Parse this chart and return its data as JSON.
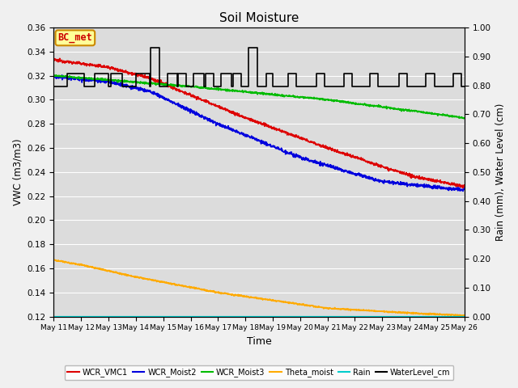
{
  "title": "Soil Moisture",
  "xlabel": "Time",
  "ylabel_left": "VWC (m3/m3)",
  "ylabel_right": "Rain (mm), Water Level (cm)",
  "ylim_left": [
    0.12,
    0.36
  ],
  "ylim_right": [
    0.0,
    1.0
  ],
  "x_tick_labels": [
    "May 11",
    "May 12",
    "May 13",
    "May 14",
    "May 15",
    "May 16",
    "May 17",
    "May 18",
    "May 19",
    "May 20",
    "May 21",
    "May 22",
    "May 23",
    "May 24",
    "May 25",
    "May 26"
  ],
  "colors": {
    "WCR_VMC1": "#dd0000",
    "WCR_Moist2": "#0000dd",
    "WCR_Moist3": "#00bb00",
    "Theta_moist": "#ffaa00",
    "Rain": "#00cccc",
    "WaterLevel_cm": "#000000"
  },
  "background_color": "#dcdcdc",
  "fig_bg": "#f0f0f0",
  "annotation_text": "BC_met",
  "annotation_fg": "#cc0000",
  "annotation_bg": "#ffff99",
  "annotation_edge": "#cc8800",
  "wl_times": [
    0,
    0.3,
    0.5,
    1.0,
    1.1,
    1.3,
    1.5,
    1.6,
    2.0,
    2.1,
    2.3,
    2.5,
    2.6,
    3.0,
    3.1,
    3.5,
    3.55,
    3.75,
    3.85,
    4.0,
    4.15,
    4.5,
    4.55,
    4.75,
    4.85,
    5.0,
    5.1,
    5.5,
    5.55,
    5.75,
    5.85,
    6.0,
    6.1,
    6.5,
    6.55,
    6.75,
    6.85,
    7.0,
    7.1,
    7.4,
    7.45,
    7.65,
    7.75,
    7.9,
    8.0,
    8.1,
    8.5,
    8.55,
    8.75,
    8.85,
    9.0,
    9.1,
    9.5,
    9.6,
    9.8,
    9.9,
    10.0,
    10.1,
    10.5,
    10.6,
    10.8,
    10.9,
    11.0,
    11.1,
    11.5,
    11.55,
    11.75,
    11.85,
    12.0,
    12.1,
    12.5,
    12.6,
    12.8,
    12.9,
    13.0,
    13.1,
    13.5,
    13.6,
    13.8,
    13.9,
    14.0,
    14.1,
    14.5,
    14.6,
    14.8,
    14.9,
    15.0
  ],
  "wl_vals": [
    0.795,
    0.795,
    0.84,
    0.84,
    0.795,
    0.795,
    0.84,
    0.84,
    0.795,
    0.84,
    0.84,
    0.795,
    0.795,
    0.84,
    0.84,
    0.795,
    0.93,
    0.93,
    0.795,
    0.795,
    0.84,
    0.795,
    0.84,
    0.84,
    0.795,
    0.795,
    0.84,
    0.795,
    0.84,
    0.84,
    0.795,
    0.795,
    0.84,
    0.795,
    0.84,
    0.84,
    0.795,
    0.795,
    0.93,
    0.93,
    0.795,
    0.795,
    0.84,
    0.84,
    0.795,
    0.795,
    0.795,
    0.84,
    0.84,
    0.795,
    0.795,
    0.795,
    0.795,
    0.84,
    0.84,
    0.795,
    0.795,
    0.795,
    0.795,
    0.84,
    0.84,
    0.795,
    0.795,
    0.795,
    0.795,
    0.84,
    0.84,
    0.795,
    0.795,
    0.795,
    0.795,
    0.84,
    0.84,
    0.795,
    0.795,
    0.795,
    0.795,
    0.84,
    0.84,
    0.795,
    0.795,
    0.795,
    0.795,
    0.84,
    0.84,
    0.795,
    0.795
  ]
}
